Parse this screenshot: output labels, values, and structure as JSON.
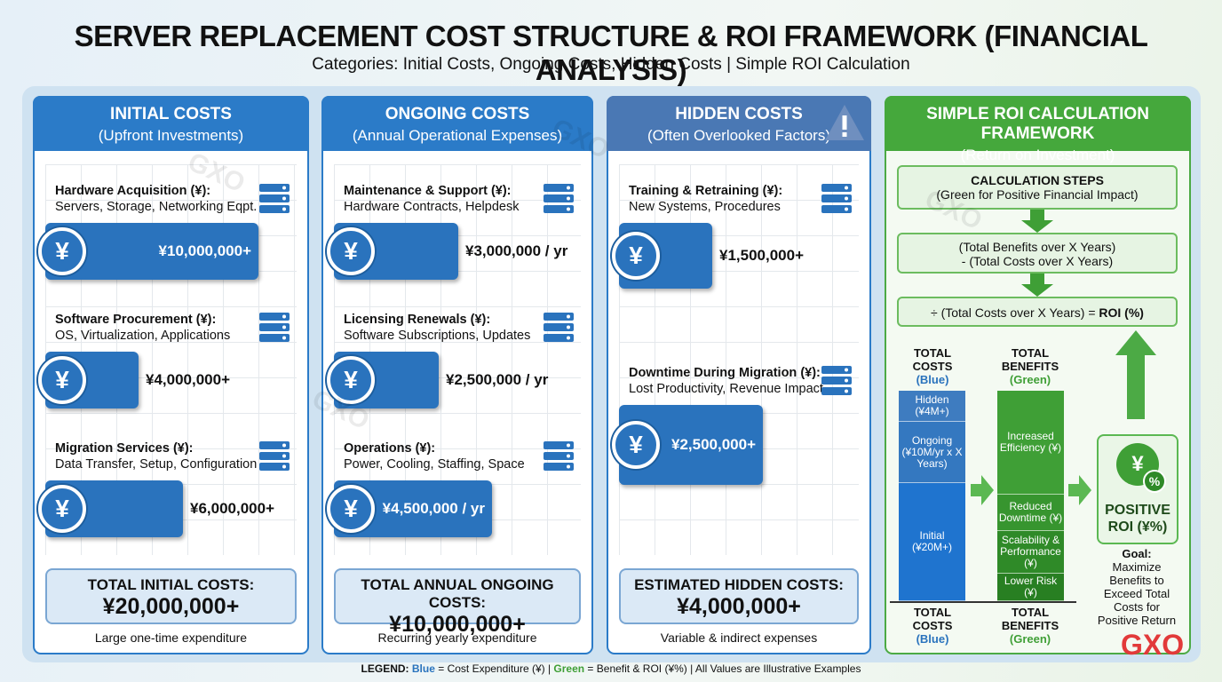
{
  "header": {
    "title": "SERVER REPLACEMENT COST STRUCTURE & ROI FRAMEWORK (FINANCIAL ANALYSIS)",
    "subtitle": "Categories: Initial Costs, Ongoing Costs, Hidden Costs | Simple ROI Calculation"
  },
  "currency_symbol": "¥",
  "columns": [
    {
      "title": "INITIAL COSTS",
      "subtitle": "(Upfront Investments)",
      "items": [
        {
          "title": "Hardware Acquisition (¥):",
          "detail": "Servers, Storage, Networking Eqpt.",
          "amount": "¥10,000,000+"
        },
        {
          "title": "Software Procurement (¥):",
          "detail": "OS, Virtualization, Applications",
          "amount": "¥4,000,000+"
        },
        {
          "title": "Migration Services (¥):",
          "detail": "Data Transfer, Setup, Configuration",
          "amount": "¥6,000,000+"
        }
      ],
      "total_label": "TOTAL INITIAL COSTS:",
      "total": "¥20,000,000+",
      "note": "Large one-time expenditure"
    },
    {
      "title": "ONGOING COSTS",
      "subtitle": "(Annual Operational Expenses)",
      "items": [
        {
          "title": "Maintenance & Support (¥):",
          "detail": "Hardware Contracts, Helpdesk",
          "amount": "¥3,000,000 / yr"
        },
        {
          "title": "Licensing Renewals (¥):",
          "detail": "Software Subscriptions, Updates",
          "amount": "¥2,500,000 / yr"
        },
        {
          "title": "Operations (¥):",
          "detail": "Power, Cooling, Staffing, Space",
          "amount": "¥4,500,000 / yr"
        }
      ],
      "total_label": "TOTAL ANNUAL ONGOING COSTS:",
      "total": "¥10,000,000+",
      "note": "Recurring yearly expenditure"
    },
    {
      "title": "HIDDEN COSTS",
      "subtitle": "(Often Overlooked Factors)",
      "items": [
        {
          "title": "Training & Retraining (¥):",
          "detail": "New Systems, Procedures",
          "amount": "¥1,500,000+"
        },
        {
          "title": "Downtime During Migration (¥):",
          "detail": "Lost Productivity, Revenue Impact",
          "amount": "¥2,500,000+"
        }
      ],
      "total_label": "ESTIMATED HIDDEN COSTS:",
      "total": "¥4,000,000+",
      "note": "Variable & indirect expenses"
    }
  ],
  "roi": {
    "title": "SIMPLE ROI CALCULATION FRAMEWORK",
    "subtitle": "(Return on Investment)",
    "steps_title": "CALCULATION STEPS",
    "steps_subtitle": "(Green for Positive Financial Impact)",
    "step2": [
      "(Total Benefits over X Years)",
      "- (Total Costs over X Years)"
    ],
    "step3": "÷ (Total Costs over X Years) = ",
    "step3_result": "ROI (%)",
    "costs_label": "TOTAL COSTS",
    "costs_color": "(Blue)",
    "cost_segments": [
      [
        "Hidden",
        "(¥4M+)"
      ],
      [
        "Ongoing",
        "(¥10M/yr x X Years)"
      ],
      [
        "Initial",
        "(¥20M+)"
      ]
    ],
    "benefits_label": "TOTAL BENEFITS",
    "benefits_color": "(Green)",
    "benefit_segments": [
      "Increased Efficiency (¥)",
      "Reduced Downtime (¥)",
      "Scalability & Performance (¥)",
      "Lower Risk (¥)"
    ],
    "percent_symbol": "%",
    "result": "POSITIVE ROI (¥%)",
    "goal_label": "Goal:",
    "goal": "Maximize Benefits to Exceed Total Costs for Positive Return"
  },
  "legend": {
    "label": "LEGEND:",
    "blue": "Blue",
    "blue_text": " = Cost Expenditure (¥) | ",
    "green": "Green",
    "green_text": " = Benefit & ROI (¥%) | All Values are Illustrative Examples"
  },
  "logo": "GXO"
}
